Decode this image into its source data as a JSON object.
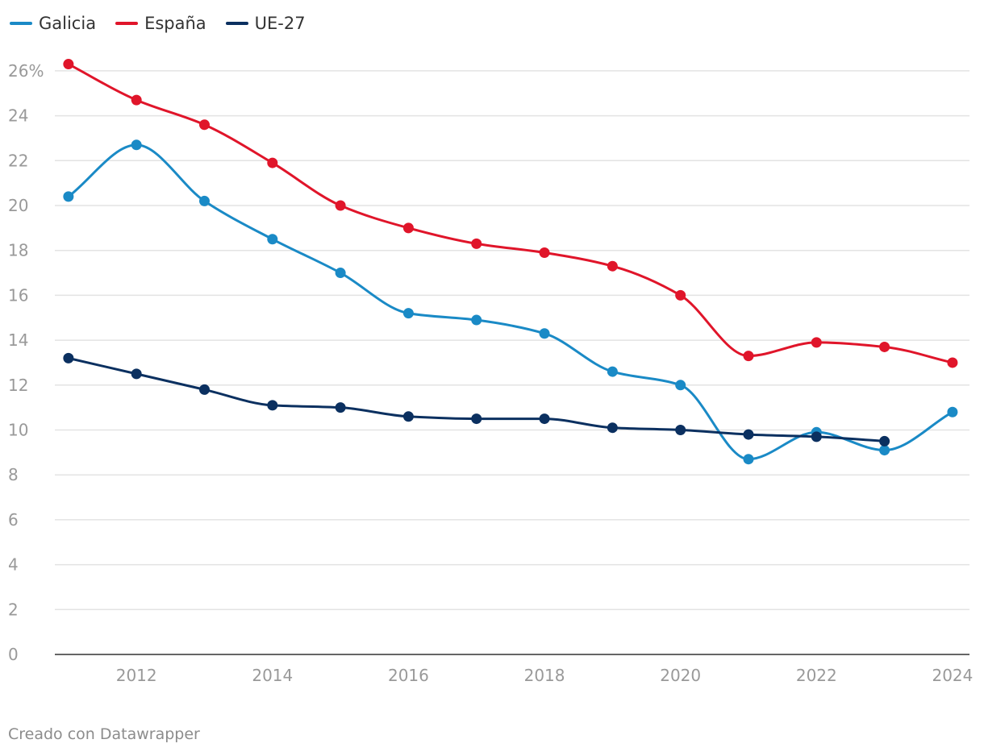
{
  "chart_data": {
    "type": "line",
    "title": "",
    "xlabel": "",
    "ylabel": "",
    "x": [
      2011,
      2012,
      2013,
      2014,
      2015,
      2016,
      2017,
      2018,
      2019,
      2020,
      2021,
      2022,
      2023,
      2024
    ],
    "xlim": [
      2010.8,
      2024.25
    ],
    "ylim": [
      0,
      27
    ],
    "x_ticks": [
      2012,
      2014,
      2016,
      2018,
      2020,
      2022,
      2024
    ],
    "x_tick_labels": [
      "2012",
      "2014",
      "2016",
      "2018",
      "2020",
      "2022",
      "2024"
    ],
    "y_ticks": [
      0,
      2,
      4,
      6,
      8,
      10,
      12,
      14,
      16,
      18,
      20,
      22,
      24,
      26
    ],
    "y_tick_labels": [
      "0",
      "2",
      "4",
      "6",
      "8",
      "10",
      "12",
      "14",
      "16",
      "18",
      "20",
      "22",
      "24",
      "26%"
    ],
    "grid": true,
    "legend_position": "top-left",
    "series": [
      {
        "name": "Galicia",
        "color": "#1a8ac6",
        "values": [
          20.4,
          22.7,
          20.2,
          18.5,
          17.0,
          15.2,
          14.9,
          14.3,
          12.6,
          12.0,
          8.7,
          9.9,
          9.1,
          10.8
        ]
      },
      {
        "name": "España",
        "color": "#e0152a",
        "values": [
          26.3,
          24.7,
          23.6,
          21.9,
          20.0,
          19.0,
          18.3,
          17.9,
          17.3,
          16.0,
          13.3,
          13.9,
          13.7,
          13.0
        ]
      },
      {
        "name": "UE-27",
        "color": "#0b3060",
        "values": [
          13.2,
          12.5,
          11.8,
          11.1,
          11.0,
          10.6,
          10.5,
          10.5,
          10.1,
          10.0,
          9.8,
          9.7,
          9.5,
          null
        ]
      }
    ]
  },
  "legend": {
    "galicia": "Galicia",
    "espana": "España",
    "ue27": "UE-27"
  },
  "colors": {
    "galicia": "#1a8ac6",
    "espana": "#e0152a",
    "ue27": "#0b3060"
  },
  "credit": "Creado con Datawrapper"
}
